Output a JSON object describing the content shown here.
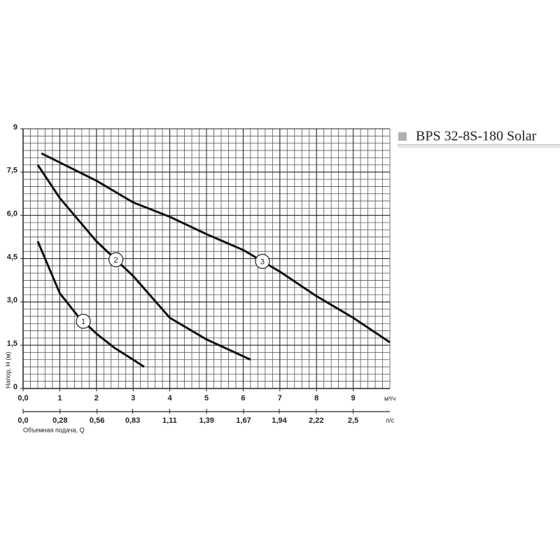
{
  "chart_data": {
    "type": "line",
    "title": "BPS 32-8S-180 Solar",
    "legend_color": "#b0b0b0",
    "x_label": "Объемная подача, Q",
    "y_label": "Напор, H (м)",
    "x_unit": "м³/ч",
    "x2_unit": "л/с",
    "xlim": [
      0,
      10
    ],
    "xticks": [
      {
        "value": 0,
        "label": "0,0"
      },
      1,
      2,
      3,
      4,
      5,
      6,
      7,
      8,
      9
    ],
    "x2lim": [
      0,
      2.778
    ],
    "x2ticks": [
      {
        "value": 0,
        "label": "0,0"
      },
      {
        "value": 0.28,
        "label": "0,28"
      },
      {
        "value": 0.56,
        "label": "0,56"
      },
      {
        "value": 0.83,
        "label": "0,83"
      },
      {
        "value": 1.11,
        "label": "1,11"
      },
      {
        "value": 1.39,
        "label": "1,39"
      },
      {
        "value": 1.67,
        "label": "1,67"
      },
      {
        "value": 1.94,
        "label": "1,94"
      },
      {
        "value": 2.22,
        "label": "2,22"
      },
      {
        "value": 2.5,
        "label": "2,5"
      }
    ],
    "ylim": [
      0,
      9
    ],
    "yticks": [
      0,
      {
        "value": 1.5,
        "label": "1,5"
      },
      {
        "value": 3,
        "label": "3,0"
      },
      {
        "value": 4.5,
        "label": "4,5"
      },
      {
        "value": 6,
        "label": "6,0"
      },
      {
        "value": 7.5,
        "label": "7,5"
      },
      9
    ],
    "grid": true,
    "series": [
      {
        "name": "1",
        "color": "#111111",
        "x": [
          0.4,
          0.7,
          1,
          1.5,
          2,
          2.5,
          3,
          3.3
        ],
        "values": [
          5.1,
          4.2,
          3.3,
          2.5,
          1.9,
          1.4,
          1.0,
          0.75
        ]
      },
      {
        "name": "2",
        "color": "#111111",
        "x": [
          0.4,
          1,
          2,
          3,
          4,
          5,
          6.2
        ],
        "values": [
          7.75,
          6.6,
          5.1,
          3.9,
          2.45,
          1.7,
          1.0
        ]
      },
      {
        "name": "3",
        "color": "#111111",
        "x": [
          0.5,
          2,
          3,
          4,
          5,
          6,
          7,
          8,
          9,
          10
        ],
        "values": [
          8.15,
          7.2,
          6.45,
          5.95,
          5.35,
          4.8,
          4.05,
          3.2,
          2.45,
          1.6
        ]
      }
    ]
  }
}
